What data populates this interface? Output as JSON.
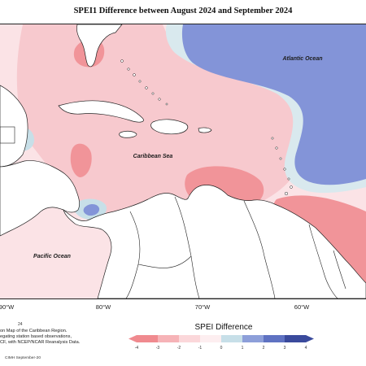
{
  "title": "SPEI1 Difference between August 2024 and September 2024",
  "labels": {
    "atlantic": "Atlantic Ocean",
    "caribbean": "Caribbean Sea",
    "pacific": "Pacific Ocean"
  },
  "longitudes": [
    "90°W",
    "80°W",
    "70°W",
    "60°W"
  ],
  "credit_number": "24",
  "credit_lines": [
    "on Map of the Caribbean Region.",
    "egating station based observations,",
    "CF, with NCEP/NCAR Reanalysis Data."
  ],
  "footer": "CIMH September-20",
  "legend": {
    "title": "SPEI Difference",
    "ticks": [
      "-4",
      "-3",
      "-2",
      "-1",
      "0",
      "1",
      "2",
      "3",
      "4"
    ],
    "colors": [
      "#f08a8f",
      "#f6b3b7",
      "#fbd7da",
      "#fdeef0",
      "#e8f3f6",
      "#c7dfe8",
      "#8d9fd9",
      "#5f72c2",
      "#3a4a9c"
    ]
  },
  "map_colors": {
    "base_pink": "#fbe3e6",
    "light_pink": "#f7c9ce",
    "medium_red": "#f19499",
    "light_blue": "#d9e9ee",
    "blue": "#8394d8",
    "land": "#ffffff",
    "coast": "#222222"
  }
}
